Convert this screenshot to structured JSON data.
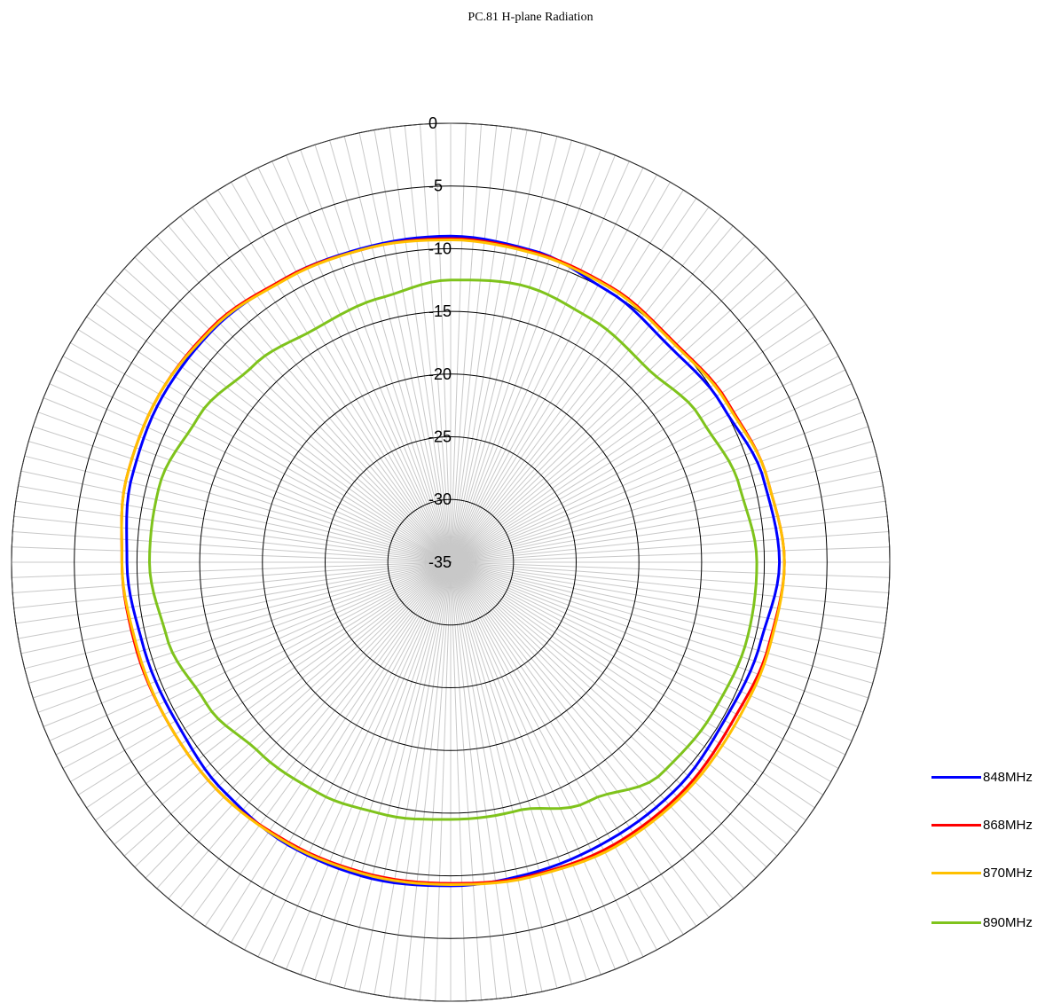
{
  "chart_data": {
    "type": "polar",
    "title": "PC.81 H-plane Radiation",
    "radial_axis": {
      "min": -35,
      "max": 0,
      "ticks": [
        0,
        -5,
        -10,
        -15,
        -20,
        -25,
        -30,
        -35
      ],
      "tick_labels": [
        "0",
        "-5",
        "-10",
        "-15",
        "-20",
        "-25",
        "-30",
        "-35"
      ]
    },
    "angular_axis": {
      "spokes": 180,
      "step_degrees": 2,
      "direction": "clockwise",
      "zero": "top"
    },
    "grid": true,
    "legend_position": "bottom-right",
    "series": [
      {
        "name": "848MHz",
        "color": "#0000ff",
        "angles": [
          0,
          15,
          30,
          45,
          60,
          75,
          90,
          105,
          120,
          135,
          150,
          165,
          180,
          195,
          210,
          225,
          240,
          255,
          270,
          285,
          300,
          315,
          330,
          345
        ],
        "values": [
          -9.0,
          -9.3,
          -10.0,
          -10.5,
          -10.0,
          -9.2,
          -8.8,
          -9.5,
          -9.8,
          -9.5,
          -9.5,
          -9.4,
          -9.2,
          -9.0,
          -9.0,
          -9.3,
          -9.7,
          -9.6,
          -9.2,
          -8.7,
          -8.5,
          -8.5,
          -8.8,
          -9.0
        ]
      },
      {
        "name": "868MHz",
        "color": "#ff0000",
        "angles": [
          0,
          15,
          30,
          45,
          60,
          75,
          90,
          105,
          120,
          135,
          150,
          165,
          180,
          195,
          210,
          225,
          240,
          255,
          270,
          285,
          300,
          315,
          330,
          345
        ],
        "values": [
          -9.2,
          -9.4,
          -9.6,
          -10.0,
          -9.5,
          -8.9,
          -8.4,
          -8.8,
          -9.2,
          -9.0,
          -9.0,
          -9.2,
          -9.4,
          -9.3,
          -9.2,
          -9.0,
          -9.1,
          -9.0,
          -8.8,
          -8.3,
          -8.2,
          -8.3,
          -8.8,
          -9.1
        ]
      },
      {
        "name": "870MHz",
        "color": "#ffc000",
        "angles": [
          0,
          15,
          30,
          45,
          60,
          75,
          90,
          105,
          120,
          135,
          150,
          165,
          180,
          195,
          210,
          225,
          240,
          255,
          270,
          285,
          300,
          315,
          330,
          345
        ],
        "values": [
          -9.3,
          -9.5,
          -9.7,
          -10.1,
          -9.6,
          -8.9,
          -8.4,
          -8.7,
          -8.9,
          -8.8,
          -8.8,
          -9.1,
          -9.3,
          -9.2,
          -9.1,
          -9.0,
          -9.1,
          -9.1,
          -8.8,
          -8.3,
          -8.2,
          -8.4,
          -8.9,
          -9.1
        ]
      },
      {
        "name": "890MHz",
        "color": "#7fc31c",
        "angles": [
          0,
          15,
          30,
          45,
          60,
          75,
          90,
          105,
          120,
          135,
          150,
          165,
          180,
          195,
          210,
          225,
          240,
          255,
          270,
          285,
          300,
          315,
          330,
          345
        ],
        "values": [
          -12.5,
          -12.2,
          -12.6,
          -13.0,
          -12.0,
          -11.2,
          -10.6,
          -10.6,
          -10.9,
          -11.2,
          -13.0,
          -14.5,
          -14.5,
          -14.2,
          -13.8,
          -13.5,
          -12.5,
          -11.6,
          -11.0,
          -11.0,
          -11.8,
          -12.8,
          -13.5,
          -13.2
        ]
      }
    ]
  }
}
